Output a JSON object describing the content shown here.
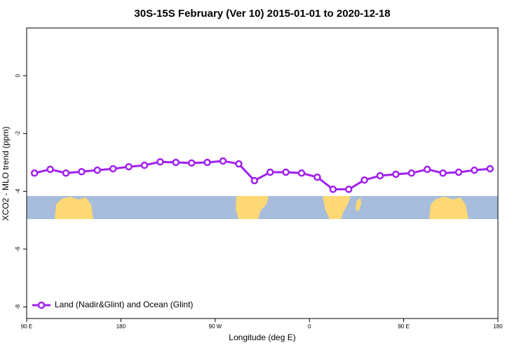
{
  "chart_data": {
    "type": "line",
    "title": "30S-15S February (Ver 10)   2015-01-01 to 2020-12-18",
    "x_label": "Longitude (deg E)",
    "y_label": "XCO2 - MLO trend (ppm)",
    "x": [
      97.5,
      112.5,
      127.5,
      142.5,
      157.5,
      172.5,
      187.5,
      202.5,
      217.5,
      232.5,
      247.5,
      262.5,
      277.5,
      292.5,
      307.5,
      322.5,
      337.5,
      352.5,
      367.5,
      382.5,
      397.5,
      412.5,
      427.5,
      442.5,
      457.5,
      472.5,
      487.5,
      502.5,
      517.5,
      532.5
    ],
    "series": [
      {
        "name": "Land (Nadir&Glint) and Ocean (Glint)",
        "color": "#a020f0",
        "values": [
          -3.37,
          -3.24,
          -3.37,
          -3.32,
          -3.27,
          -3.22,
          -3.15,
          -3.1,
          -2.98,
          -3.0,
          -3.02,
          -3.0,
          -2.95,
          -3.05,
          -3.63,
          -3.34,
          -3.34,
          -3.37,
          -3.51,
          -3.93,
          -3.93,
          -3.61,
          -3.46,
          -3.41,
          -3.37,
          -3.24,
          -3.37,
          -3.34,
          -3.27,
          -3.22
        ]
      }
    ],
    "xlim": [
      90,
      540
    ],
    "xticks": [
      {
        "value": 90,
        "label": "90 E"
      },
      180,
      {
        "value": 270,
        "label": "90 W"
      },
      {
        "value": 360,
        "label": "0"
      },
      {
        "value": 450,
        "label": "90 E"
      },
      {
        "value": 540,
        "label": "180"
      }
    ],
    "ylim": [
      -8.4,
      1.65
    ],
    "yticks": [
      0,
      -2,
      -4,
      -6,
      -8
    ],
    "legend": "bottom-left"
  }
}
